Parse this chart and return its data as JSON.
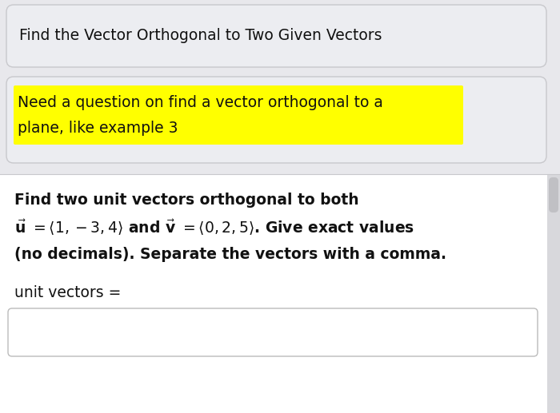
{
  "title_text": "Find the Vector Orthogonal to Two Given Vectors",
  "highlight_text_line1": "Need a question on find a vector orthogonal to a",
  "highlight_text_line2": "plane, like example 3",
  "body_line1": "Find two unit vectors orthogonal to both",
  "body_line3": "(no decimals). Separate the vectors with a comma.",
  "answer_label": "unit vectors =",
  "bg_color": "#e8e8ec",
  "panel1_color": "#ecedf1",
  "panel2_color": "#ecedf1",
  "panel3_color": "#ffffff",
  "highlight_color": "#ffff00",
  "border_color": "#c8c8cc",
  "text_color": "#111111",
  "title_fontsize": 13.5,
  "body_fontsize": 13.5,
  "highlight_fontsize": 13.5,
  "scrollbar_color": "#c0c0c4"
}
